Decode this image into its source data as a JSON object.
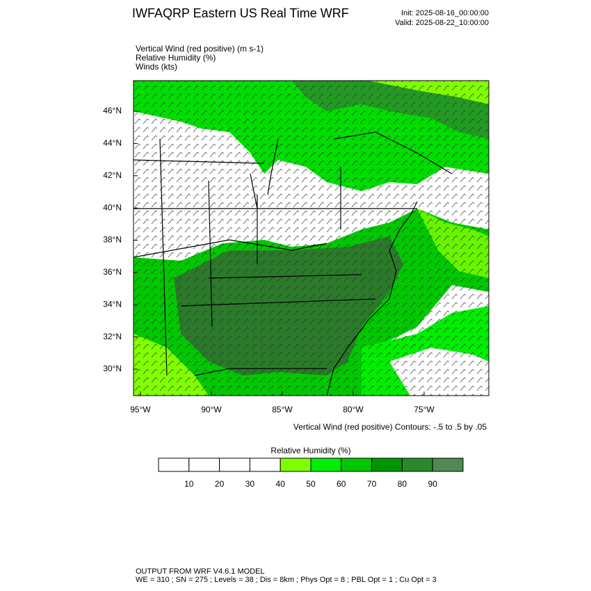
{
  "header": {
    "title": "IWFAQRP Eastern US Real Time WRF",
    "init": "Init: 2025-08-16_00:00:00",
    "valid": "Valid: 2025-08-22_10:00:00"
  },
  "fields": [
    "Vertical Wind (red positive)   (m s-1)",
    "Relative Humidity   (%)",
    "Winds   (kts)"
  ],
  "map": {
    "xlim": [
      -95.49,
      -70.44
    ],
    "ylim": [
      28.36,
      47.9
    ],
    "lon_ticks": [
      {
        "value": -95,
        "label": "95°W"
      },
      {
        "value": -90,
        "label": "90°W"
      },
      {
        "value": -85,
        "label": "85°W"
      },
      {
        "value": -80,
        "label": "80°W"
      },
      {
        "value": -75,
        "label": "75°W"
      }
    ],
    "lat_ticks": [
      {
        "value": 46,
        "label": "46°N"
      },
      {
        "value": 44,
        "label": "44°N"
      },
      {
        "value": 42,
        "label": "42°N"
      },
      {
        "value": 40,
        "label": "40°N"
      },
      {
        "value": 38,
        "label": "38°N"
      },
      {
        "value": 36,
        "label": "36°N"
      },
      {
        "value": 34,
        "label": "34°N"
      },
      {
        "value": 32,
        "label": "32°N"
      },
      {
        "value": 30,
        "label": "30°N"
      }
    ],
    "caption": "Vertical Wind (red positive) Contours: -.5 to .5 by .05"
  },
  "colorbar": {
    "title": "Relative Humidity   (%)",
    "ticks": [
      10,
      20,
      30,
      40,
      50,
      60,
      70,
      80,
      90
    ],
    "colors": [
      "#ffffff",
      "#ffffff",
      "#ffffff",
      "#ffffff",
      "#80ff00",
      "#00ee00",
      "#00c800",
      "#009600",
      "#2a8a2a",
      "#4f8a55"
    ]
  },
  "footer": [
    "OUTPUT FROM WRF V4.6.1 MODEL",
    "WE = 310 ; SN = 275 ; Levels = 38 ; Dis = 8km ; Phys Opt = 8 ; PBL Opt = 1 ; Cu Opt = 3"
  ]
}
